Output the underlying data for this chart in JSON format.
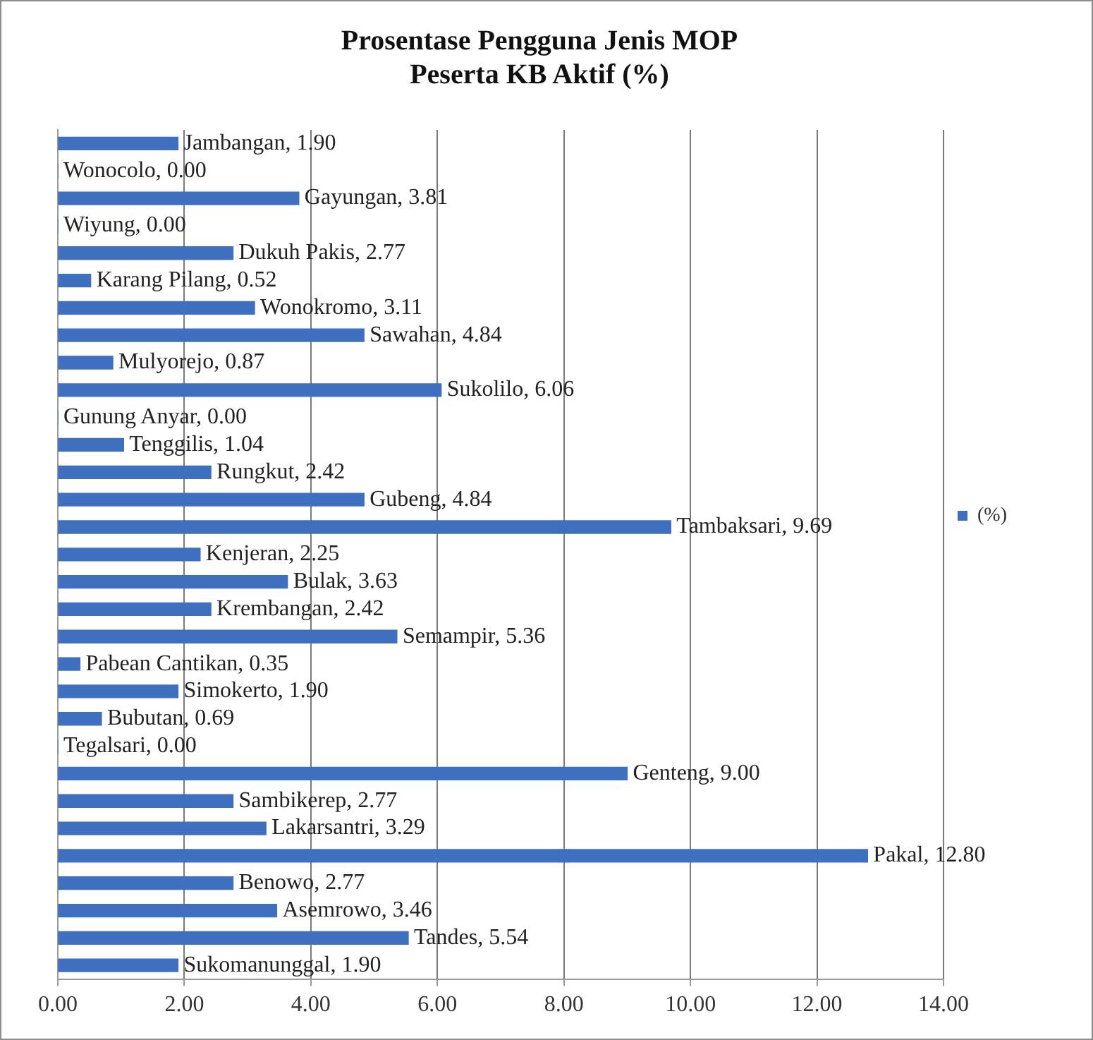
{
  "chart_data": {
    "type": "bar",
    "orientation": "horizontal",
    "title": "Prosentase Pengguna Jenis MOP\nPeserta KB Aktif (%)",
    "categories": [
      null,
      null,
      null,
      null,
      null,
      null,
      null,
      null,
      null,
      null,
      null,
      null,
      null,
      null,
      null,
      null,
      null,
      null,
      null,
      null,
      null,
      null,
      null,
      null,
      null,
      null,
      null,
      null,
      null,
      null,
      null
    ],
    "series": [
      {
        "name": "(%)",
        "color": "#3f6fbf",
        "values": [
          1.9,
          0,
          3.81,
          0,
          2.77,
          0.52,
          3.11,
          4.84,
          0.87,
          6.06,
          0,
          1.04,
          2.42,
          4.84,
          9.69,
          2.25,
          3.63,
          2.42,
          5.36,
          0.35,
          1.9,
          0.69,
          0,
          9,
          2.77,
          3.29,
          12.8,
          2.77,
          3.46,
          5.54,
          1.9
        ],
        "value_labels": [
          "Jambangan, 1.90",
          "Wonocolo, 0.00",
          "Gayungan, 3.81",
          "Wiyung, 0.00",
          "Dukuh Pakis, 2.77",
          "Karang Pilang, 0.52",
          "Wonokromo, 3.11",
          "Sawahan, 4.84",
          "Mulyorejo, 0.87",
          "Sukolilo, 6.06",
          "Gunung Anyar, 0.00",
          "Tenggilis, 1.04",
          "Rungkut, 2.42",
          "Gubeng, 4.84",
          "Tambaksari, 9.69",
          "Kenjeran, 2.25",
          "Bulak, 3.63",
          "Krembangan, 2.42",
          "Semampir, 5.36",
          "Pabean Cantikan, 0.35",
          "Simokerto, 1.90",
          "Bubutan, 0.69",
          "Tegalsari, 0.00",
          "Genteng, 9.00",
          "Sambikerep, 2.77",
          "Lakarsantri, 3.29",
          "Pakal, 12.80",
          "Benowo, 2.77",
          "Asemrowo, 3.46",
          "Tandes, 5.54",
          "Sukomanunggal, 1.90"
        ]
      }
    ],
    "xlim": [
      0,
      14
    ],
    "xticks": [
      {
        "value": 0,
        "label": "0.00"
      },
      {
        "value": 2,
        "label": "2.00"
      },
      {
        "value": 4,
        "label": "4.00"
      },
      {
        "value": 6,
        "label": "6.00"
      },
      {
        "value": 8,
        "label": "8.00"
      },
      {
        "value": 10,
        "label": "10.00"
      },
      {
        "value": 12,
        "label": "12.00"
      },
      {
        "value": 14,
        "label": "14.00"
      }
    ],
    "tick_labels": "x",
    "grid": "x",
    "legend": "right"
  }
}
